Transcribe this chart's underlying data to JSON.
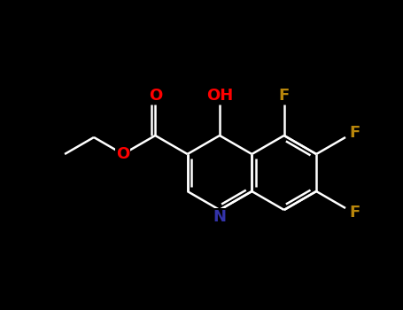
{
  "background_color": "#000000",
  "bond_color": "#ffffff",
  "atom_colors": {
    "O": "#ff0000",
    "N": "#3333aa",
    "F": "#b8860b",
    "C": "#ffffff",
    "H": "#ffffff"
  },
  "figsize": [
    4.55,
    3.5
  ],
  "dpi": 100,
  "xlim": [
    0,
    455
  ],
  "ylim": [
    0,
    350
  ]
}
